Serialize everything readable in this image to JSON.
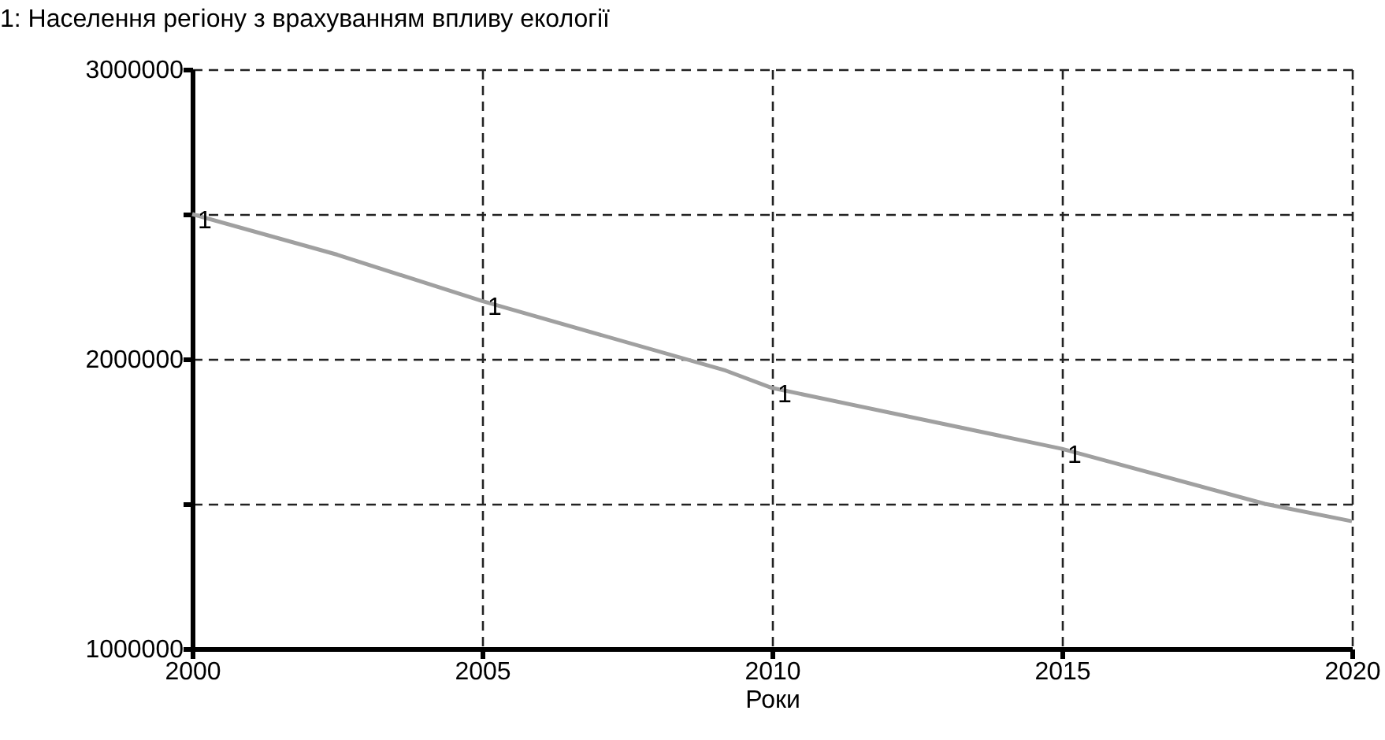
{
  "chart_data": {
    "type": "line",
    "title": "1: Населення регіону з врахуванням впливу екології",
    "xlabel": "Роки",
    "x": [
      2000,
      2002.5,
      2005,
      2009.2,
      2010,
      2015,
      2018.5,
      2020
    ],
    "series": [
      {
        "name": "1",
        "color": "#a0a0a0",
        "values": [
          2500000,
          2360000,
          2200000,
          1960000,
          1900000,
          1690000,
          1500000,
          1440000
        ]
      }
    ],
    "xlim": [
      2000,
      2020
    ],
    "xticks": [
      2000,
      2005,
      2010,
      2015,
      2020
    ],
    "ylim": [
      1000000,
      3000000
    ],
    "yticks": [
      1000000,
      {
        "value": 1500000,
        "label": null
      },
      2000000,
      {
        "value": 2500000,
        "label": null
      },
      3000000
    ],
    "grid": true,
    "marker": "none",
    "line_style": "solid"
  }
}
